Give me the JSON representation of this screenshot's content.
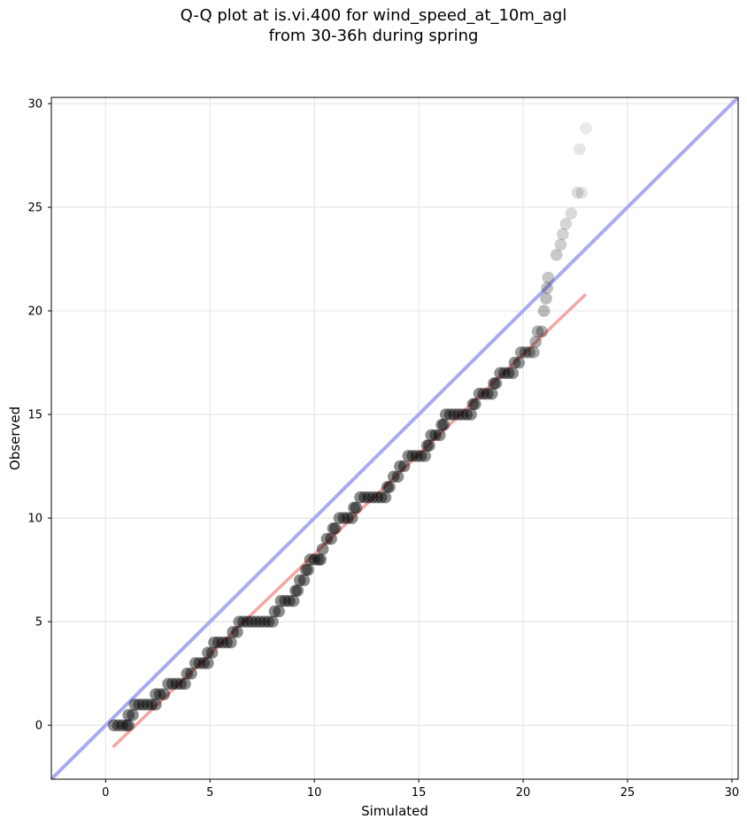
{
  "chart_data": {
    "type": "scatter",
    "title": "Q-Q plot at is.vi.400 for wind_speed_at_10m_agl",
    "subtitle": "from 30-36h during spring",
    "xlabel": "Simulated",
    "ylabel": "Observed",
    "xlim": [
      -2.6,
      30.3
    ],
    "ylim": [
      -2.6,
      30.3
    ],
    "xticks": [
      0,
      5,
      10,
      15,
      20,
      25,
      30
    ],
    "yticks": [
      0,
      5,
      10,
      15,
      20,
      25,
      30
    ],
    "grid": true,
    "legend": "none",
    "colors": {
      "points": "#000000",
      "identity_line": "#aaaaf2",
      "fit_line": "#f4a6a6"
    },
    "reference_lines": [
      {
        "kind": "identity",
        "x": [
          -2.6,
          30.3
        ],
        "y": [
          -2.6,
          30.3
        ]
      },
      {
        "kind": "fit",
        "x": [
          0.35,
          23.0
        ],
        "y": [
          -1.05,
          20.8
        ]
      }
    ],
    "series": [
      {
        "points": [
          [
            0.4,
            0.0
          ],
          [
            0.6,
            0.0
          ],
          [
            0.8,
            0.0
          ],
          [
            1.0,
            0.0
          ],
          [
            1.1,
            0.0
          ],
          [
            1.1,
            0.5
          ],
          [
            1.3,
            0.5
          ],
          [
            1.4,
            1.0
          ],
          [
            1.6,
            1.0
          ],
          [
            1.8,
            1.0
          ],
          [
            2.0,
            1.0
          ],
          [
            2.2,
            1.0
          ],
          [
            2.4,
            1.0
          ],
          [
            2.4,
            1.5
          ],
          [
            2.6,
            1.5
          ],
          [
            2.8,
            1.5
          ],
          [
            3.0,
            2.0
          ],
          [
            3.2,
            2.0
          ],
          [
            3.4,
            2.0
          ],
          [
            3.6,
            2.0
          ],
          [
            3.8,
            2.0
          ],
          [
            3.9,
            2.5
          ],
          [
            4.1,
            2.5
          ],
          [
            4.3,
            3.0
          ],
          [
            4.5,
            3.0
          ],
          [
            4.7,
            3.0
          ],
          [
            4.9,
            3.0
          ],
          [
            4.9,
            3.5
          ],
          [
            5.1,
            3.5
          ],
          [
            5.2,
            4.0
          ],
          [
            5.4,
            4.0
          ],
          [
            5.6,
            4.0
          ],
          [
            5.8,
            4.0
          ],
          [
            6.0,
            4.0
          ],
          [
            6.1,
            4.5
          ],
          [
            6.3,
            4.5
          ],
          [
            6.4,
            5.0
          ],
          [
            6.6,
            5.0
          ],
          [
            6.8,
            5.0
          ],
          [
            7.0,
            5.0
          ],
          [
            7.2,
            5.0
          ],
          [
            7.4,
            5.0
          ],
          [
            7.6,
            5.0
          ],
          [
            7.8,
            5.0
          ],
          [
            8.0,
            5.0
          ],
          [
            8.1,
            5.5
          ],
          [
            8.3,
            5.5
          ],
          [
            8.4,
            6.0
          ],
          [
            8.6,
            6.0
          ],
          [
            8.8,
            6.0
          ],
          [
            9.0,
            6.0
          ],
          [
            9.1,
            6.5
          ],
          [
            9.2,
            6.5
          ],
          [
            9.3,
            7.0
          ],
          [
            9.5,
            7.0
          ],
          [
            9.6,
            7.5
          ],
          [
            9.7,
            7.5
          ],
          [
            9.8,
            8.0
          ],
          [
            10.0,
            8.0
          ],
          [
            10.2,
            8.0
          ],
          [
            10.3,
            8.0
          ],
          [
            10.4,
            8.5
          ],
          [
            10.6,
            9.0
          ],
          [
            10.8,
            9.0
          ],
          [
            10.9,
            9.5
          ],
          [
            11.0,
            9.5
          ],
          [
            11.2,
            10.0
          ],
          [
            11.4,
            10.0
          ],
          [
            11.6,
            10.0
          ],
          [
            11.8,
            10.0
          ],
          [
            11.9,
            10.5
          ],
          [
            12.0,
            10.5
          ],
          [
            12.2,
            11.0
          ],
          [
            12.4,
            11.0
          ],
          [
            12.6,
            11.0
          ],
          [
            12.8,
            11.0
          ],
          [
            13.0,
            11.0
          ],
          [
            13.2,
            11.0
          ],
          [
            13.4,
            11.0
          ],
          [
            13.5,
            11.5
          ],
          [
            13.6,
            11.5
          ],
          [
            13.8,
            12.0
          ],
          [
            14.0,
            12.0
          ],
          [
            14.1,
            12.5
          ],
          [
            14.3,
            12.5
          ],
          [
            14.5,
            13.0
          ],
          [
            14.7,
            13.0
          ],
          [
            14.9,
            13.0
          ],
          [
            15.1,
            13.0
          ],
          [
            15.3,
            13.0
          ],
          [
            15.4,
            13.5
          ],
          [
            15.5,
            13.5
          ],
          [
            15.6,
            14.0
          ],
          [
            15.8,
            14.0
          ],
          [
            16.0,
            14.0
          ],
          [
            16.1,
            14.5
          ],
          [
            16.2,
            14.5
          ],
          [
            16.3,
            15.0
          ],
          [
            16.5,
            15.0
          ],
          [
            16.7,
            15.0
          ],
          [
            16.9,
            15.0
          ],
          [
            17.1,
            15.0
          ],
          [
            17.3,
            15.0
          ],
          [
            17.5,
            15.0
          ],
          [
            17.6,
            15.5
          ],
          [
            17.7,
            15.5
          ],
          [
            17.9,
            16.0
          ],
          [
            18.1,
            16.0
          ],
          [
            18.3,
            16.0
          ],
          [
            18.5,
            16.0
          ],
          [
            18.6,
            16.5
          ],
          [
            18.7,
            16.5
          ],
          [
            18.9,
            17.0
          ],
          [
            19.1,
            17.0
          ],
          [
            19.3,
            17.0
          ],
          [
            19.5,
            17.0
          ],
          [
            19.6,
            17.5
          ],
          [
            19.8,
            17.5
          ],
          [
            19.9,
            18.0
          ],
          [
            20.1,
            18.0
          ],
          [
            20.3,
            18.0
          ],
          [
            20.5,
            18.0
          ],
          [
            20.6,
            18.5
          ],
          [
            20.7,
            19.0
          ],
          [
            20.9,
            19.0
          ],
          [
            21.0,
            20.0
          ],
          [
            21.1,
            20.6
          ],
          [
            21.15,
            21.1
          ],
          [
            21.2,
            21.6
          ],
          [
            21.6,
            22.7
          ],
          [
            21.8,
            23.2
          ],
          [
            21.9,
            23.7
          ],
          [
            22.05,
            24.2
          ],
          [
            22.3,
            24.7
          ],
          [
            22.6,
            25.7
          ],
          [
            22.8,
            25.7
          ],
          [
            22.7,
            27.8
          ],
          [
            23.0,
            28.8
          ]
        ]
      }
    ]
  }
}
